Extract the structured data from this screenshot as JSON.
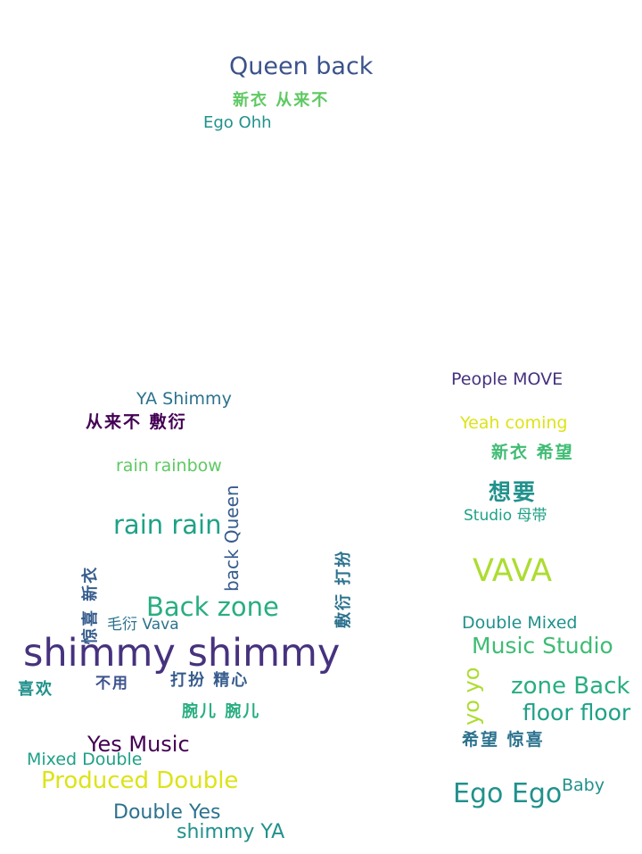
{
  "colors": {
    "dark_purple": "#440154",
    "indigo": "#46327e",
    "slate_blue": "#3b528b",
    "steel": "#365c8d",
    "teal_blue": "#2c728e",
    "teal": "#21918c",
    "sea_green": "#1fa187",
    "green": "#28ae80",
    "light_green": "#3fbc73",
    "lime": "#5ec962",
    "yellow_green": "#addc30",
    "yellow": "#dde318"
  },
  "words": {
    "queen_back": "Queen back",
    "xinyi_conglaibu_top": "新衣 从来不",
    "ego_ohh": "Ego Ohh",
    "people_move": "People MOVE",
    "ya_shimmy": "YA Shimmy",
    "conglaibu_fuyan": "从来不 敷衍",
    "yeah_coming": "Yeah coming",
    "xinyi_xiwang": "新衣 希望",
    "rain_rainbow": "rain rainbow",
    "xiangyao": "想要",
    "studio_mudai": "Studio 母带",
    "rain_rain": "rain rain",
    "back_queen": "back Queen",
    "jingxi_xinyi": "惊喜 新衣",
    "fuyan_daban": "敷衍 打扮",
    "vava_big": "VAVA",
    "back_zone": "Back zone",
    "maoyan_vava": "毛衍 Vava",
    "double_mixed": "Double Mixed",
    "music_studio": "Music Studio",
    "shimmy_shimmy": "shimmy shimmy",
    "yo_yo": "yo yo",
    "zone_back": "zone Back",
    "xihuan": "喜欢",
    "buyong": "不用",
    "daban_jingxin": "打扮 精心",
    "floor_floor": "floor floor",
    "waner_waner": "腕儿 腕儿",
    "xiwang_jingxi": "希望 惊喜",
    "yes_music": "Yes Music",
    "mixed_double": "Mixed Double",
    "produced_double": "Produced Double",
    "ego_ego": "Ego Ego",
    "baby": "Baby",
    "double_yes": "Double Yes",
    "shimmy_ya": "shimmy YA"
  }
}
